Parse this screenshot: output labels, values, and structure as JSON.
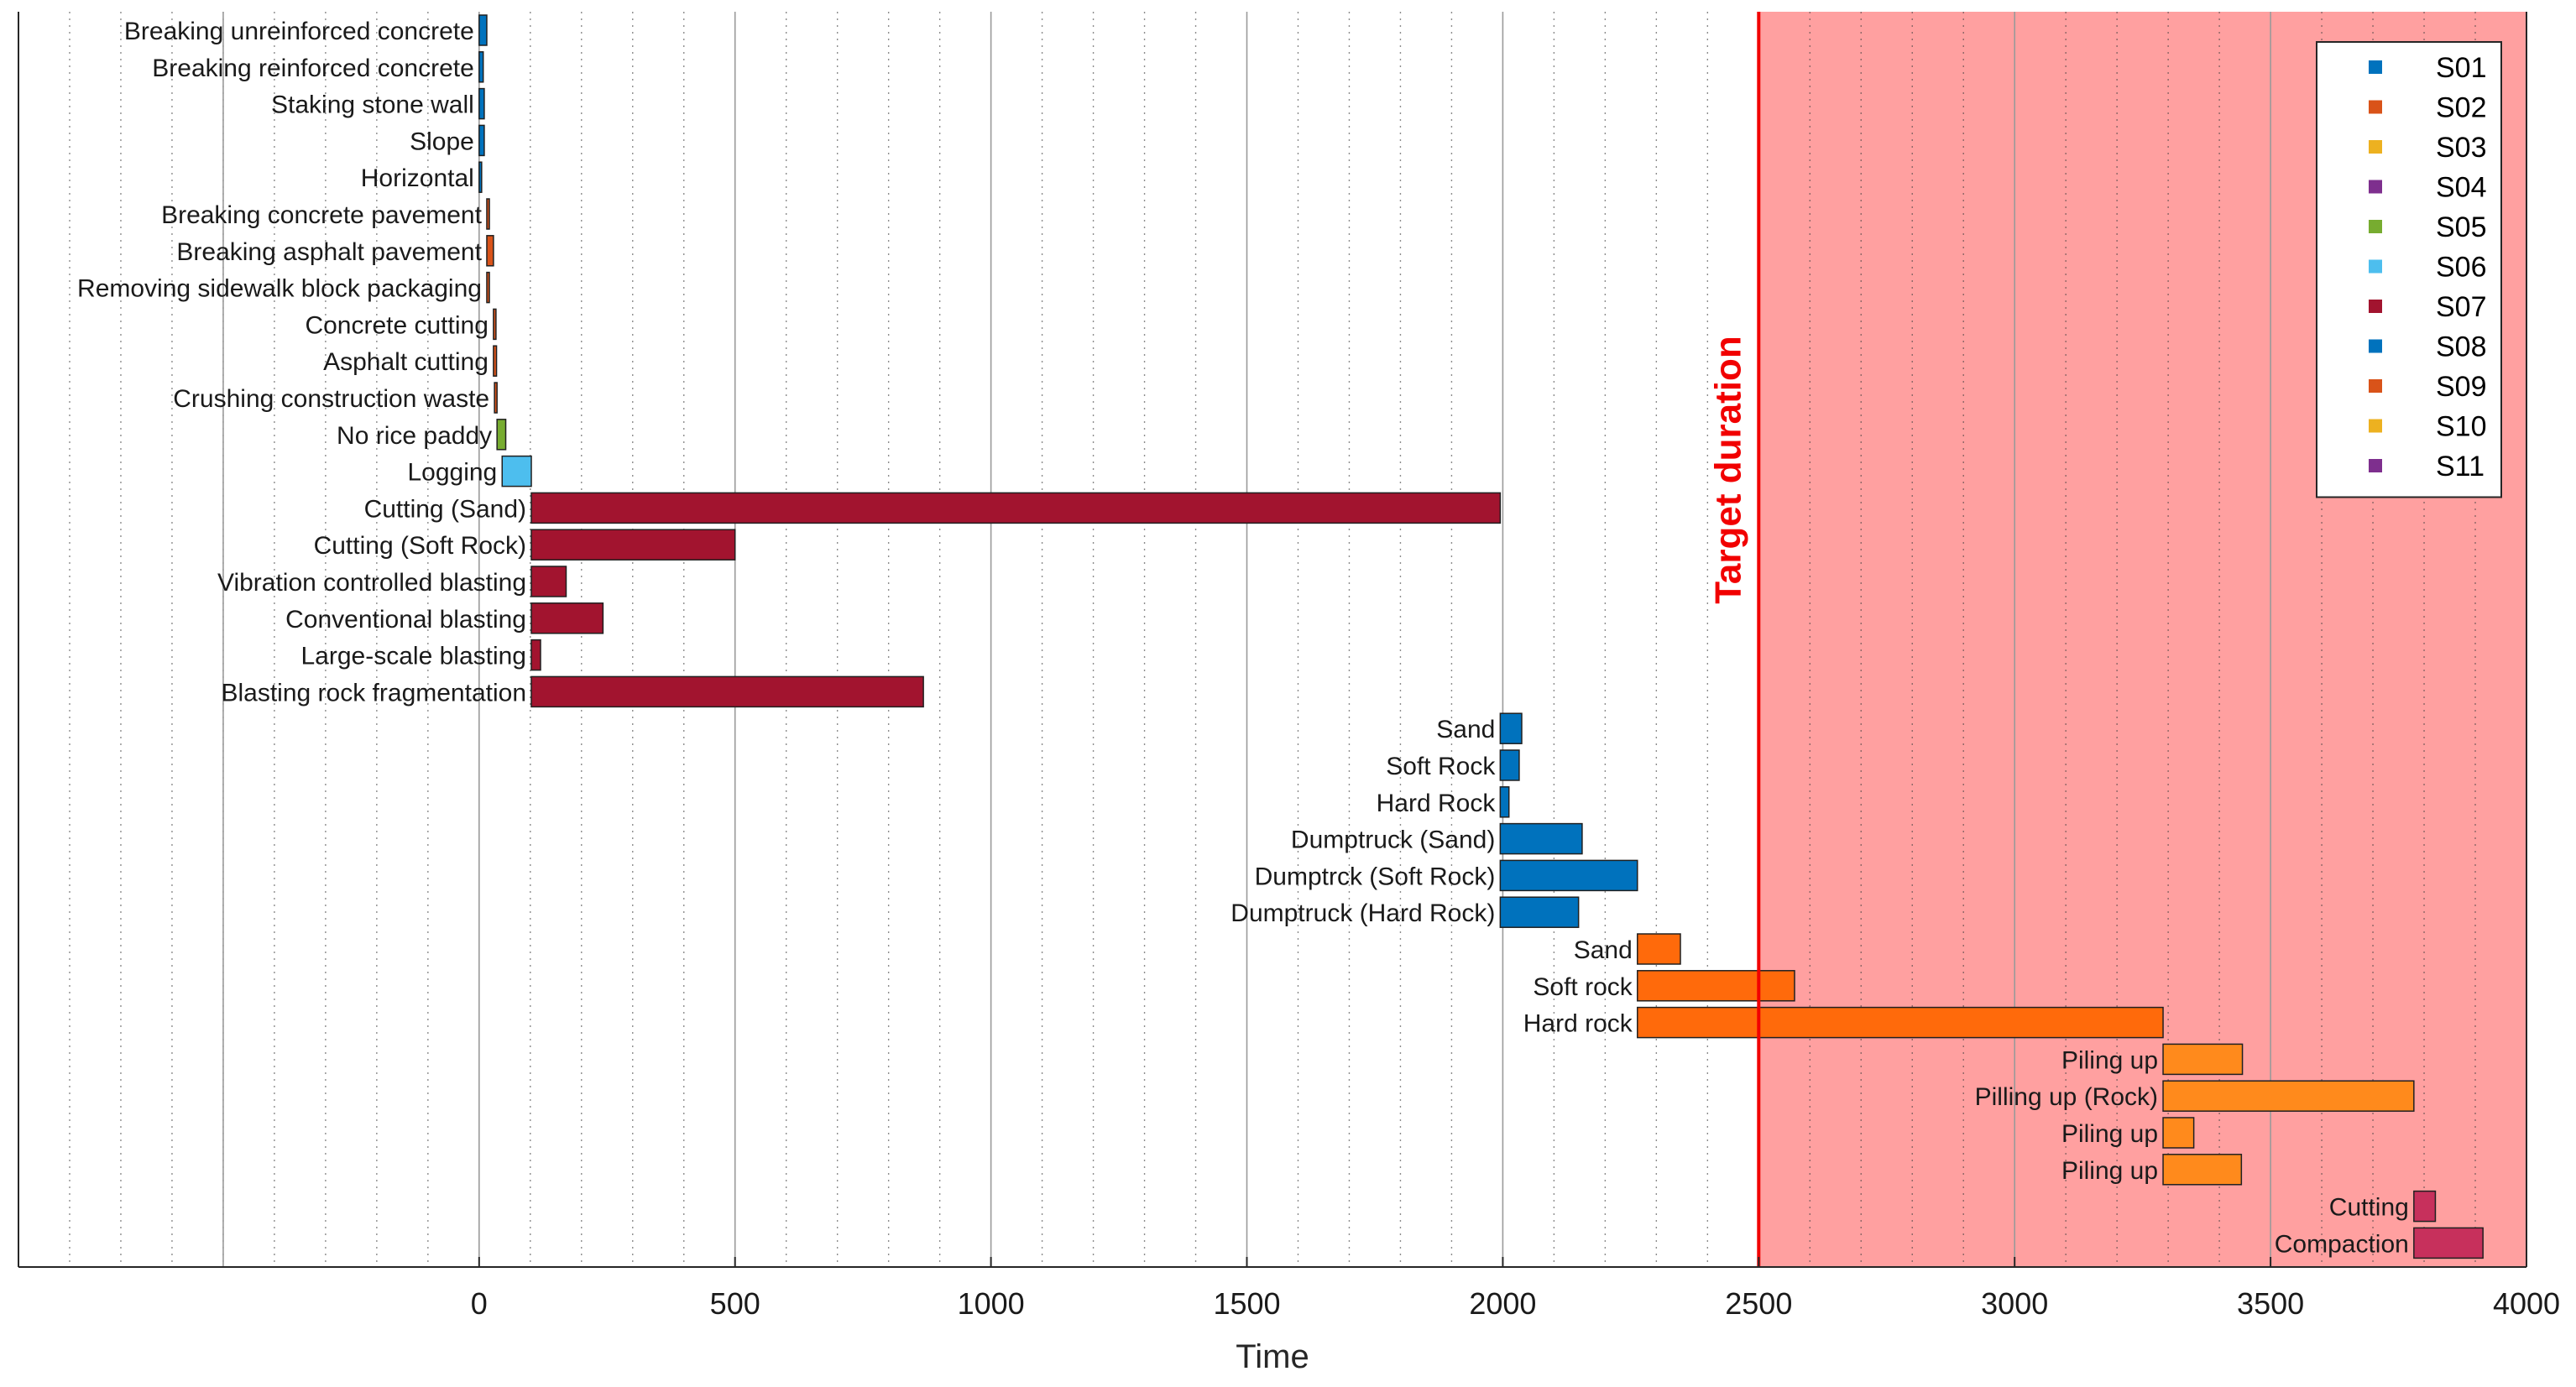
{
  "chart_data": {
    "type": "bar",
    "orientation": "horizontal-gantt",
    "xlabel": "Time",
    "xlim": [
      -900,
      4000
    ],
    "xticks": [
      0,
      500,
      1000,
      1500,
      2000,
      2500,
      3000,
      3500,
      4000
    ],
    "minor_grid_step": 100,
    "grid": true,
    "target": {
      "label": "Target duration",
      "start": 2500,
      "end": 4000,
      "color": "#f10000",
      "fill": "#ffa0a0"
    },
    "legend": {
      "position": "top-right",
      "entries": [
        {
          "name": "S01",
          "color": "#0072bd"
        },
        {
          "name": "S02",
          "color": "#d95319"
        },
        {
          "name": "S03",
          "color": "#edb120"
        },
        {
          "name": "S04",
          "color": "#7e2f8e"
        },
        {
          "name": "S05",
          "color": "#77ac30"
        },
        {
          "name": "S06",
          "color": "#4dbeee"
        },
        {
          "name": "S07",
          "color": "#a2142f"
        },
        {
          "name": "S08",
          "color": "#0072bd"
        },
        {
          "name": "S09",
          "color": "#d95319"
        },
        {
          "name": "S10",
          "color": "#edb120"
        },
        {
          "name": "S11",
          "color": "#7e2f8e"
        }
      ]
    },
    "tasks": [
      {
        "label": "Breaking unreinforced concrete",
        "start": 0,
        "end": 15,
        "color": "#0072bd"
      },
      {
        "label": "Breaking reinforced concrete",
        "start": 0,
        "end": 8,
        "color": "#0072bd"
      },
      {
        "label": "Staking stone wall",
        "start": 0,
        "end": 10,
        "color": "#0072bd"
      },
      {
        "label": "Slope",
        "start": 0,
        "end": 10,
        "color": "#0072bd"
      },
      {
        "label": "Horizontal",
        "start": 0,
        "end": 4,
        "color": "#0072bd"
      },
      {
        "label": "Breaking concrete pavement",
        "start": 15,
        "end": 20,
        "color": "#d95319"
      },
      {
        "label": "Breaking asphalt pavement",
        "start": 15,
        "end": 28,
        "color": "#d95319"
      },
      {
        "label": "Removing sidewalk block packaging",
        "start": 15,
        "end": 20,
        "color": "#d95319"
      },
      {
        "label": "Concrete cutting",
        "start": 28,
        "end": 32,
        "color": "#d95319"
      },
      {
        "label": "Asphalt cutting",
        "start": 28,
        "end": 34,
        "color": "#d95319"
      },
      {
        "label": "Crushing construction waste",
        "start": 30,
        "end": 35,
        "color": "#d95319"
      },
      {
        "label": "No rice paddy",
        "start": 35,
        "end": 52,
        "color": "#77ac30"
      },
      {
        "label": "Logging",
        "start": 45,
        "end": 102,
        "color": "#4dbeee"
      },
      {
        "label": "Cutting (Sand)",
        "start": 102,
        "end": 1995,
        "color": "#a2142f"
      },
      {
        "label": "Cutting (Soft Rock)",
        "start": 102,
        "end": 500,
        "color": "#a2142f"
      },
      {
        "label": "Vibration controlled blasting",
        "start": 102,
        "end": 170,
        "color": "#a2142f"
      },
      {
        "label": "Conventional blasting",
        "start": 102,
        "end": 242,
        "color": "#a2142f"
      },
      {
        "label": "Large-scale blasting",
        "start": 102,
        "end": 120,
        "color": "#a2142f"
      },
      {
        "label": "Blasting rock fragmentation",
        "start": 102,
        "end": 868,
        "color": "#a2142f"
      },
      {
        "label": "Sand",
        "start": 1995,
        "end": 2037,
        "color": "#0072bd"
      },
      {
        "label": "Soft Rock",
        "start": 1995,
        "end": 2032,
        "color": "#0072bd"
      },
      {
        "label": "Hard Rock",
        "start": 1995,
        "end": 2012,
        "color": "#0072bd"
      },
      {
        "label": "Dumptruck (Sand)",
        "start": 1995,
        "end": 2155,
        "color": "#0072bd"
      },
      {
        "label": "Dumptrck (Soft Rock)",
        "start": 1995,
        "end": 2263,
        "color": "#0072bd"
      },
      {
        "label": "Dumptruck (Hard Rock)",
        "start": 1995,
        "end": 2148,
        "color": "#0072bd"
      },
      {
        "label": "Sand",
        "start": 2263,
        "end": 2347,
        "color": "#ff6a0b"
      },
      {
        "label": "Soft rock",
        "start": 2263,
        "end": 2570,
        "color": "#ff6a0b"
      },
      {
        "label": "Hard rock",
        "start": 2263,
        "end": 3290,
        "color": "#ff6a0b"
      },
      {
        "label": "Piling up",
        "start": 3290,
        "end": 3445,
        "color": "#ff8a1c"
      },
      {
        "label": "Pilling up (Rock)",
        "start": 3290,
        "end": 3780,
        "color": "#ff8a1c"
      },
      {
        "label": "Piling up",
        "start": 3290,
        "end": 3350,
        "color": "#ff8a1c"
      },
      {
        "label": "Piling up",
        "start": 3290,
        "end": 3443,
        "color": "#ff8a1c"
      },
      {
        "label": "Cutting",
        "start": 3780,
        "end": 3822,
        "color": "#c7305c"
      },
      {
        "label": "Compaction",
        "start": 3780,
        "end": 3915,
        "color": "#c7305c"
      }
    ]
  }
}
